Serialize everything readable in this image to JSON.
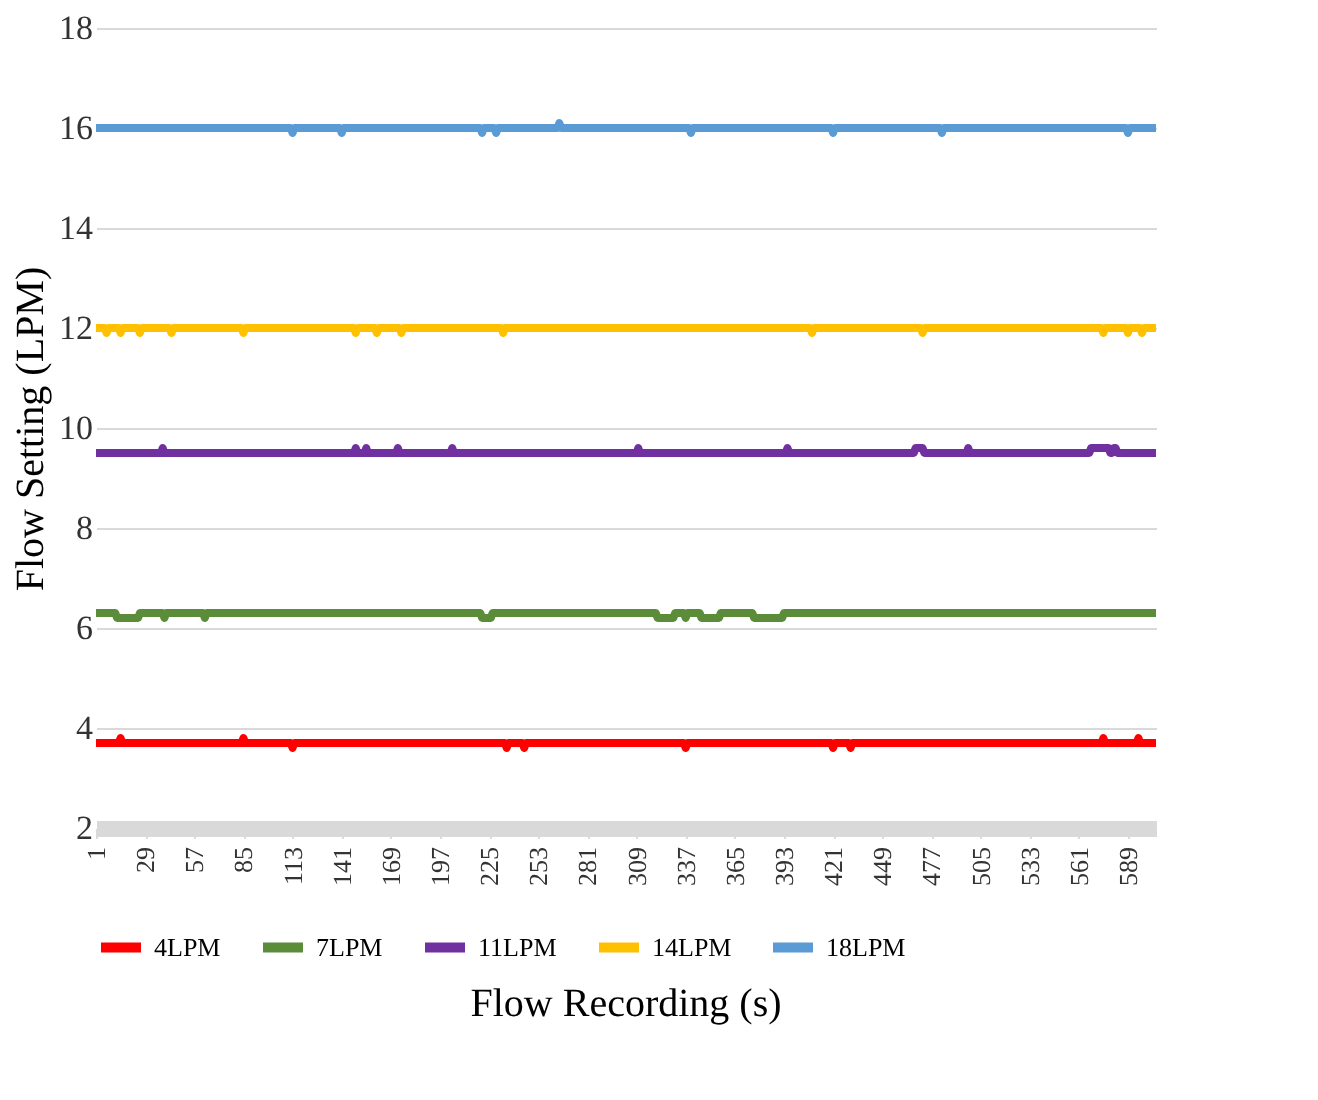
{
  "chart_data": {
    "type": "line",
    "xlabel": "Flow Recording (s)",
    "ylabel": "Flow Setting (LPM)",
    "xlim": [
      1,
      605
    ],
    "xticks": [
      1,
      29,
      57,
      85,
      113,
      141,
      169,
      197,
      225,
      253,
      281,
      309,
      337,
      365,
      393,
      421,
      449,
      477,
      505,
      533,
      561,
      589
    ],
    "ylim": [
      2,
      18
    ],
    "yticks": [
      2,
      4,
      6,
      8,
      10,
      12,
      14,
      16,
      18
    ],
    "grid": "y",
    "legend": "bottom",
    "marker": "none",
    "line_style": "solid",
    "series": [
      {
        "name": "4LPM",
        "color": "#ff0000",
        "x": [
          1,
          14,
          15,
          16,
          84,
          85,
          86,
          112,
          113,
          114,
          234,
          235,
          236,
          244,
          245,
          246,
          336,
          337,
          338,
          420,
          421,
          422,
          430,
          431,
          432,
          574,
          575,
          576,
          594,
          595,
          596,
          605
        ],
        "values": [
          3.7,
          3.7,
          3.8,
          3.7,
          3.7,
          3.8,
          3.7,
          3.7,
          3.6,
          3.7,
          3.7,
          3.6,
          3.7,
          3.7,
          3.6,
          3.7,
          3.7,
          3.6,
          3.7,
          3.7,
          3.6,
          3.7,
          3.7,
          3.6,
          3.7,
          3.7,
          3.8,
          3.7,
          3.7,
          3.8,
          3.7,
          3.7
        ]
      },
      {
        "name": "7LPM",
        "color": "#5b8c3a",
        "x": [
          1,
          12,
          13,
          25,
          26,
          39,
          40,
          41,
          62,
          63,
          64,
          220,
          221,
          226,
          227,
          320,
          321,
          330,
          331,
          336,
          337,
          338,
          345,
          346,
          356,
          357,
          375,
          376,
          392,
          393,
          605
        ],
        "values": [
          6.3,
          6.3,
          6.2,
          6.2,
          6.3,
          6.3,
          6.2,
          6.3,
          6.3,
          6.2,
          6.3,
          6.3,
          6.2,
          6.2,
          6.3,
          6.3,
          6.2,
          6.2,
          6.3,
          6.3,
          6.2,
          6.3,
          6.3,
          6.2,
          6.2,
          6.3,
          6.3,
          6.2,
          6.2,
          6.3,
          6.3
        ]
      },
      {
        "name": "11LPM",
        "color": "#7030a0",
        "x": [
          1,
          38,
          39,
          40,
          148,
          149,
          150,
          154,
          155,
          156,
          172,
          173,
          174,
          203,
          204,
          205,
          309,
          310,
          311,
          394,
          395,
          396,
          467,
          468,
          472,
          473,
          497,
          498,
          499,
          567,
          568,
          578,
          579,
          580,
          581,
          582,
          583,
          605
        ],
        "values": [
          9.5,
          9.5,
          9.6,
          9.5,
          9.5,
          9.6,
          9.5,
          9.5,
          9.6,
          9.5,
          9.5,
          9.6,
          9.5,
          9.5,
          9.6,
          9.5,
          9.5,
          9.6,
          9.5,
          9.5,
          9.6,
          9.5,
          9.5,
          9.6,
          9.6,
          9.5,
          9.5,
          9.6,
          9.5,
          9.5,
          9.6,
          9.6,
          9.5,
          9.5,
          9.6,
          9.6,
          9.5,
          9.5
        ]
      },
      {
        "name": "14LPM",
        "color": "#ffc000",
        "x": [
          1,
          6,
          7,
          8,
          14,
          15,
          16,
          25,
          26,
          27,
          43,
          44,
          45,
          84,
          85,
          86,
          148,
          149,
          150,
          160,
          161,
          162,
          174,
          175,
          176,
          232,
          233,
          234,
          408,
          409,
          410,
          471,
          472,
          473,
          574,
          575,
          576,
          588,
          589,
          590,
          596,
          597,
          598,
          605
        ],
        "values": [
          12,
          12,
          11.9,
          12,
          12,
          11.9,
          12,
          12,
          11.9,
          12,
          12,
          11.9,
          12,
          12,
          11.9,
          12,
          12,
          11.9,
          12,
          12,
          11.9,
          12,
          12,
          11.9,
          12,
          12,
          11.9,
          12,
          12,
          11.9,
          12,
          12,
          11.9,
          12,
          12,
          11.9,
          12,
          12,
          11.9,
          12,
          12,
          11.9,
          12,
          12
        ]
      },
      {
        "name": "18LPM",
        "color": "#5b9bd5",
        "x": [
          1,
          112,
          113,
          114,
          140,
          141,
          142,
          220,
          221,
          222,
          228,
          229,
          230,
          264,
          265,
          266,
          339,
          340,
          341,
          420,
          421,
          422,
          482,
          483,
          484,
          588,
          589,
          590,
          605
        ],
        "values": [
          16,
          16,
          15.9,
          16,
          16,
          15.9,
          16,
          16,
          15.9,
          16,
          16,
          15.9,
          16,
          16,
          16.1,
          16,
          16,
          15.9,
          16,
          16,
          15.9,
          16,
          16,
          15.9,
          16,
          16,
          15.9,
          16,
          16
        ]
      }
    ]
  }
}
